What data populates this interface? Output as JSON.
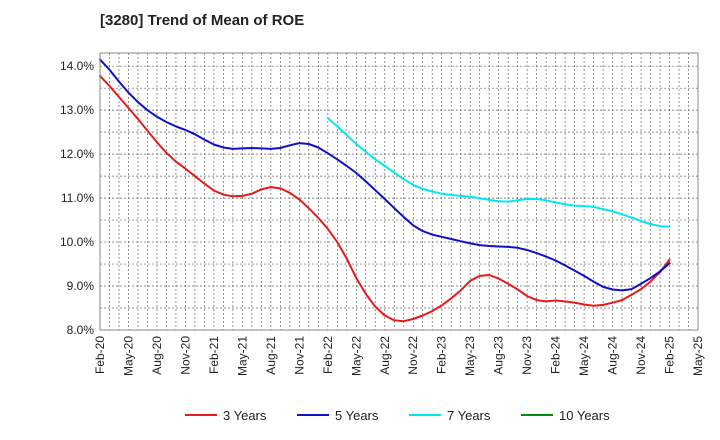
{
  "chart_data": {
    "type": "line",
    "title": "[3280]  Trend of Mean of ROE",
    "xlabel": "",
    "ylabel": "",
    "ylim": [
      8.0,
      14.3
    ],
    "grid": true,
    "legend_position": "bottom",
    "x_ticks": [
      "Feb-20",
      "May-20",
      "Aug-20",
      "Nov-20",
      "Feb-21",
      "May-21",
      "Aug-21",
      "Nov-21",
      "Feb-22",
      "May-22",
      "Aug-22",
      "Nov-22",
      "Feb-23",
      "May-23",
      "Aug-23",
      "Nov-23",
      "Feb-24",
      "May-24",
      "Aug-24",
      "Nov-24",
      "Feb-25",
      "May-25"
    ],
    "y_ticks": [
      "8.0%",
      "9.0%",
      "10.0%",
      "11.0%",
      "12.0%",
      "13.0%",
      "14.0%"
    ],
    "series": [
      {
        "name": "3 Years",
        "color": "#e8191a",
        "points": [
          [
            "Feb-20",
            13.78
          ],
          [
            "Mar-20",
            13.55
          ],
          [
            "Apr-20",
            13.3
          ],
          [
            "May-20",
            13.05
          ],
          [
            "Jun-20",
            12.8
          ],
          [
            "Jul-20",
            12.53
          ],
          [
            "Aug-20",
            12.27
          ],
          [
            "Sep-20",
            12.03
          ],
          [
            "Oct-20",
            11.83
          ],
          [
            "Nov-20",
            11.67
          ],
          [
            "Dec-20",
            11.5
          ],
          [
            "Jan-21",
            11.33
          ],
          [
            "Feb-21",
            11.17
          ],
          [
            "Mar-21",
            11.08
          ],
          [
            "Apr-21",
            11.04
          ],
          [
            "May-21",
            11.05
          ],
          [
            "Jun-21",
            11.1
          ],
          [
            "Jul-21",
            11.2
          ],
          [
            "Aug-21",
            11.25
          ],
          [
            "Sep-21",
            11.22
          ],
          [
            "Oct-21",
            11.12
          ],
          [
            "Nov-21",
            10.97
          ],
          [
            "Dec-21",
            10.77
          ],
          [
            "Jan-22",
            10.55
          ],
          [
            "Feb-22",
            10.3
          ],
          [
            "Mar-22",
            10.0
          ],
          [
            "Apr-22",
            9.62
          ],
          [
            "May-22",
            9.18
          ],
          [
            "Jun-22",
            8.82
          ],
          [
            "Jul-22",
            8.53
          ],
          [
            "Aug-22",
            8.33
          ],
          [
            "Sep-22",
            8.22
          ],
          [
            "Oct-22",
            8.2
          ],
          [
            "Nov-22",
            8.25
          ],
          [
            "Dec-22",
            8.33
          ],
          [
            "Jan-23",
            8.43
          ],
          [
            "Feb-23",
            8.56
          ],
          [
            "Mar-23",
            8.72
          ],
          [
            "Apr-23",
            8.9
          ],
          [
            "May-23",
            9.12
          ],
          [
            "Jun-23",
            9.23
          ],
          [
            "Jul-23",
            9.25
          ],
          [
            "Aug-23",
            9.17
          ],
          [
            "Sep-23",
            9.05
          ],
          [
            "Oct-23",
            8.92
          ],
          [
            "Nov-23",
            8.77
          ],
          [
            "Dec-23",
            8.68
          ],
          [
            "Jan-24",
            8.65
          ],
          [
            "Feb-24",
            8.67
          ],
          [
            "Mar-24",
            8.65
          ],
          [
            "Apr-24",
            8.62
          ],
          [
            "May-24",
            8.58
          ],
          [
            "Jun-24",
            8.55
          ],
          [
            "Jul-24",
            8.57
          ],
          [
            "Aug-24",
            8.62
          ],
          [
            "Sep-24",
            8.68
          ],
          [
            "Oct-24",
            8.8
          ],
          [
            "Nov-24",
            8.93
          ],
          [
            "Dec-24",
            9.1
          ],
          [
            "Jan-25",
            9.32
          ],
          [
            "Feb-25",
            9.6
          ]
        ]
      },
      {
        "name": "5 Years",
        "color": "#1010c8",
        "points": [
          [
            "Feb-20",
            14.15
          ],
          [
            "Mar-20",
            13.92
          ],
          [
            "Apr-20",
            13.65
          ],
          [
            "May-20",
            13.4
          ],
          [
            "Jun-20",
            13.18
          ],
          [
            "Jul-20",
            13.0
          ],
          [
            "Aug-20",
            12.85
          ],
          [
            "Sep-20",
            12.73
          ],
          [
            "Oct-20",
            12.63
          ],
          [
            "Nov-20",
            12.55
          ],
          [
            "Dec-20",
            12.45
          ],
          [
            "Jan-21",
            12.33
          ],
          [
            "Feb-21",
            12.22
          ],
          [
            "Mar-21",
            12.15
          ],
          [
            "Apr-21",
            12.12
          ],
          [
            "May-21",
            12.13
          ],
          [
            "Jun-21",
            12.14
          ],
          [
            "Jul-21",
            12.13
          ],
          [
            "Aug-21",
            12.12
          ],
          [
            "Sep-21",
            12.14
          ],
          [
            "Oct-21",
            12.2
          ],
          [
            "Nov-21",
            12.25
          ],
          [
            "Dec-21",
            12.23
          ],
          [
            "Jan-22",
            12.15
          ],
          [
            "Feb-22",
            12.02
          ],
          [
            "Mar-22",
            11.88
          ],
          [
            "Apr-22",
            11.73
          ],
          [
            "May-22",
            11.57
          ],
          [
            "Jun-22",
            11.38
          ],
          [
            "Jul-22",
            11.18
          ],
          [
            "Aug-22",
            10.98
          ],
          [
            "Sep-22",
            10.77
          ],
          [
            "Oct-22",
            10.57
          ],
          [
            "Nov-22",
            10.38
          ],
          [
            "Dec-22",
            10.25
          ],
          [
            "Jan-23",
            10.17
          ],
          [
            "Feb-23",
            10.12
          ],
          [
            "Mar-23",
            10.07
          ],
          [
            "Apr-23",
            10.02
          ],
          [
            "May-23",
            9.97
          ],
          [
            "Jun-23",
            9.93
          ],
          [
            "Jul-23",
            9.91
          ],
          [
            "Aug-23",
            9.9
          ],
          [
            "Sep-23",
            9.89
          ],
          [
            "Oct-23",
            9.87
          ],
          [
            "Nov-23",
            9.82
          ],
          [
            "Dec-23",
            9.75
          ],
          [
            "Jan-24",
            9.67
          ],
          [
            "Feb-24",
            9.58
          ],
          [
            "Mar-24",
            9.47
          ],
          [
            "Apr-24",
            9.35
          ],
          [
            "May-24",
            9.23
          ],
          [
            "Jun-24",
            9.1
          ],
          [
            "Jul-24",
            8.98
          ],
          [
            "Aug-24",
            8.92
          ],
          [
            "Sep-24",
            8.9
          ],
          [
            "Oct-24",
            8.93
          ],
          [
            "Nov-24",
            9.05
          ],
          [
            "Dec-24",
            9.18
          ],
          [
            "Jan-25",
            9.33
          ],
          [
            "Feb-25",
            9.52
          ]
        ]
      },
      {
        "name": "7 Years",
        "color": "#00e8f0",
        "points": [
          [
            "Feb-22",
            12.82
          ],
          [
            "Mar-22",
            12.63
          ],
          [
            "Apr-22",
            12.43
          ],
          [
            "May-22",
            12.23
          ],
          [
            "Jun-22",
            12.05
          ],
          [
            "Jul-22",
            11.88
          ],
          [
            "Aug-22",
            11.73
          ],
          [
            "Sep-22",
            11.58
          ],
          [
            "Oct-22",
            11.43
          ],
          [
            "Nov-22",
            11.3
          ],
          [
            "Dec-22",
            11.21
          ],
          [
            "Jan-23",
            11.15
          ],
          [
            "Feb-23",
            11.1
          ],
          [
            "Mar-23",
            11.07
          ],
          [
            "Apr-23",
            11.05
          ],
          [
            "May-23",
            11.03
          ],
          [
            "Jun-23",
            11.0
          ],
          [
            "Jul-23",
            10.96
          ],
          [
            "Aug-23",
            10.93
          ],
          [
            "Sep-23",
            10.92
          ],
          [
            "Oct-23",
            10.95
          ],
          [
            "Nov-23",
            10.98
          ],
          [
            "Dec-23",
            10.98
          ],
          [
            "Jan-24",
            10.95
          ],
          [
            "Feb-24",
            10.9
          ],
          [
            "Mar-24",
            10.86
          ],
          [
            "Apr-24",
            10.83
          ],
          [
            "May-24",
            10.82
          ],
          [
            "Jun-24",
            10.8
          ],
          [
            "Jul-24",
            10.75
          ],
          [
            "Aug-24",
            10.7
          ],
          [
            "Sep-24",
            10.63
          ],
          [
            "Oct-24",
            10.56
          ],
          [
            "Nov-24",
            10.48
          ],
          [
            "Dec-24",
            10.41
          ],
          [
            "Jan-25",
            10.36
          ],
          [
            "Feb-25",
            10.35
          ]
        ]
      },
      {
        "name": "10 Years",
        "color": "#0a8a0a",
        "points": []
      }
    ]
  }
}
